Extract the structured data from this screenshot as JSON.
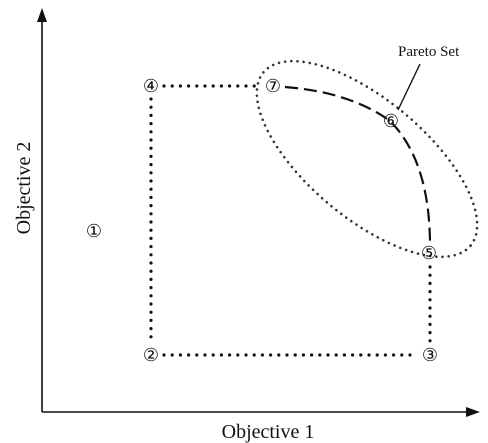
{
  "axes": {
    "x_label": "Objective 1",
    "y_label": "Objective 2"
  },
  "pareto_label": "Pareto Set",
  "points": [
    {
      "id": "1",
      "symbol": "①"
    },
    {
      "id": "2",
      "symbol": "②"
    },
    {
      "id": "3",
      "symbol": "③"
    },
    {
      "id": "4",
      "symbol": "④"
    },
    {
      "id": "5",
      "symbol": "⑤"
    },
    {
      "id": "6",
      "symbol": "⑥"
    },
    {
      "id": "7",
      "symbol": "⑦"
    }
  ]
}
